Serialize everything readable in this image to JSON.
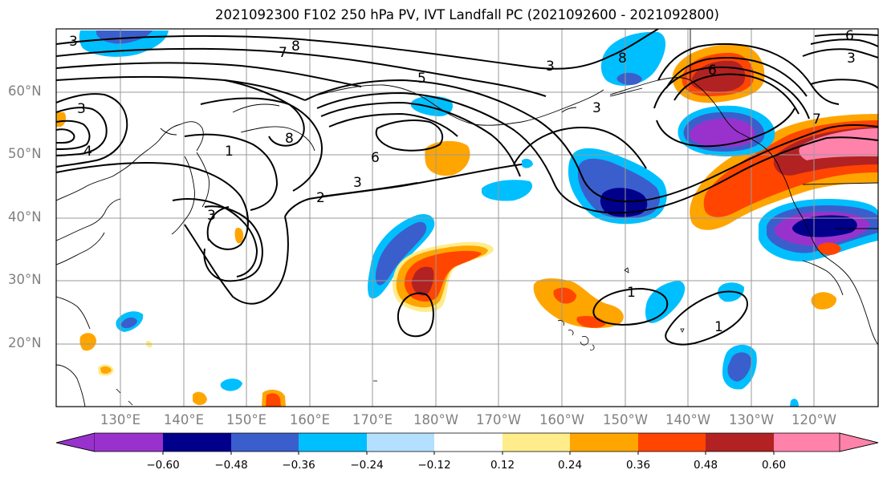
{
  "title": "2021092300 F102 250 hPa PV, IVT Landfall PC (2021092600 - 2021092800)",
  "lat_labels": [
    "60°N",
    "50°N",
    "40°N",
    "30°N",
    "20°N"
  ],
  "lon_labels": [
    "130°E",
    "140°E",
    "150°E",
    "160°E",
    "170°E",
    "180°W",
    "170°W",
    "160°W",
    "150°W",
    "140°W",
    "130°W",
    "120°W"
  ],
  "colorbar": {
    "ticks": [
      "−0.60",
      "−0.48",
      "−0.36",
      "−0.24",
      "−0.12",
      "0.12",
      "0.24",
      "0.36",
      "0.48",
      "0.60"
    ],
    "colors": [
      "#9932cc",
      "#00008b",
      "#3a5fcd",
      "#00bfff",
      "#b3e0ff",
      "#ffffff",
      "#ffec8b",
      "#ffa500",
      "#ff4500",
      "#b22222",
      "#ff82ab"
    ]
  },
  "contour_labels": [
    "3",
    "8",
    "7",
    "5",
    "3",
    "8",
    "6",
    "3",
    "4",
    "6",
    "3",
    "3",
    "1",
    "8",
    "6",
    "3",
    "2",
    "7",
    "3",
    "1",
    "1"
  ],
  "colors": {
    "purple": "#9932cc",
    "navy": "#00008b",
    "royal": "#3a5fcd",
    "sky": "#00bfff",
    "pale": "#b3e0ff",
    "yellow": "#ffec8b",
    "orange": "#ffa500",
    "red": "#ff4500",
    "darkred": "#b22222",
    "pink": "#ff82ab"
  }
}
